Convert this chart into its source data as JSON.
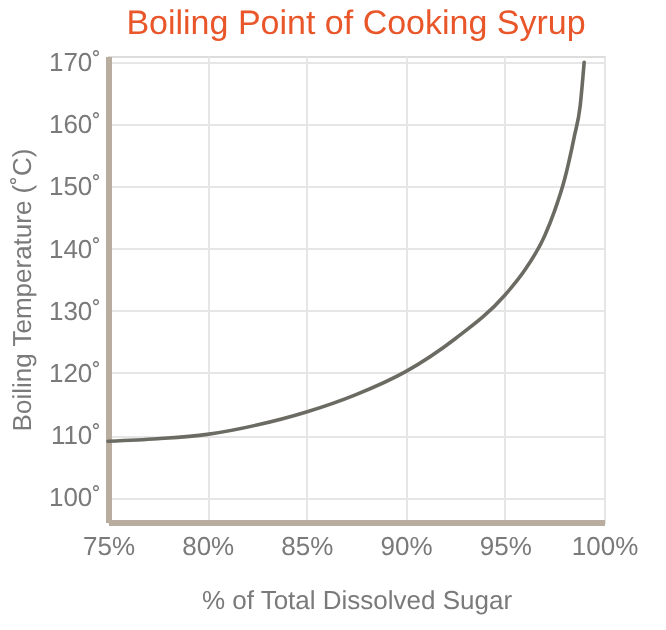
{
  "chart_data": {
    "type": "line",
    "title": "Boiling Point of Cooking Syrup",
    "xlabel": "% of Total Dissolved Sugar",
    "ylabel": "Boiling Temperature (˚C)",
    "x": [
      75,
      77.5,
      80,
      82.5,
      85,
      87.5,
      90,
      92.5,
      95,
      96,
      97,
      97.5,
      98,
      98.5,
      98.8,
      99
    ],
    "series": [
      {
        "color": "#6b6b63",
        "values": [
          109,
          109.4,
          110.1,
          111.6,
          113.7,
          116.5,
          120.2,
          125.5,
          132.5,
          136.5,
          142,
          146,
          151,
          158,
          163,
          170
        ]
      }
    ],
    "xlim": [
      75,
      100
    ],
    "ylim": [
      96,
      171
    ],
    "xticks": [
      {
        "value": 75,
        "label": "75%"
      },
      {
        "value": 80,
        "label": "80%"
      },
      {
        "value": 85,
        "label": "85%"
      },
      {
        "value": 90,
        "label": "90%"
      },
      {
        "value": 95,
        "label": "95%"
      },
      {
        "value": 100,
        "label": "100%"
      }
    ],
    "yticks": [
      {
        "value": 100,
        "label": "100˚"
      },
      {
        "value": 110,
        "label": "110˚"
      },
      {
        "value": 120,
        "label": "120˚"
      },
      {
        "value": 130,
        "label": "130˚"
      },
      {
        "value": 140,
        "label": "140˚"
      },
      {
        "value": 150,
        "label": "150˚"
      },
      {
        "value": 160,
        "label": "160˚"
      },
      {
        "value": 170,
        "label": "170˚"
      }
    ],
    "grid": true,
    "marker": "none",
    "line_style": "solid"
  }
}
